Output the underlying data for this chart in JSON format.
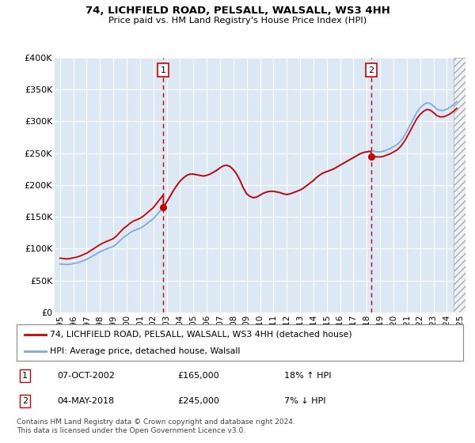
{
  "title": "74, LICHFIELD ROAD, PELSALL, WALSALL, WS3 4HH",
  "subtitle": "Price paid vs. HM Land Registry's House Price Index (HPI)",
  "background_color": "#dce9f5",
  "plot_bg_color": "#dce9f5",
  "hpi_line_color": "#7faadd",
  "property_line_color": "#cc0000",
  "vline_color": "#cc0000",
  "ylim": [
    0,
    400000
  ],
  "yticks": [
    0,
    50000,
    100000,
    150000,
    200000,
    250000,
    300000,
    350000,
    400000
  ],
  "ytick_labels": [
    "£0",
    "£50K",
    "£100K",
    "£150K",
    "£200K",
    "£250K",
    "£300K",
    "£350K",
    "£400K"
  ],
  "xtick_years": [
    1995,
    1996,
    1997,
    1998,
    1999,
    2000,
    2001,
    2002,
    2003,
    2004,
    2005,
    2006,
    2007,
    2008,
    2009,
    2010,
    2011,
    2012,
    2013,
    2014,
    2015,
    2016,
    2017,
    2018,
    2019,
    2020,
    2021,
    2022,
    2023,
    2024,
    2025
  ],
  "vline1_x": 2002.75,
  "vline2_x": 2018.33,
  "vline1_date": "07-OCT-2002",
  "vline1_price": "£165,000",
  "vline1_hpi": "18% ↑ HPI",
  "vline2_date": "04-MAY-2018",
  "vline2_price": "£245,000",
  "vline2_hpi": "7% ↓ HPI",
  "legend_property": "74, LICHFIELD ROAD, PELSALL, WALSALL, WS3 4HH (detached house)",
  "legend_hpi": "HPI: Average price, detached house, Walsall",
  "footer": "Contains HM Land Registry data © Crown copyright and database right 2024.\nThis data is licensed under the Open Government Licence v3.0.",
  "hpi_data_x": [
    1995.0,
    1995.25,
    1995.5,
    1995.75,
    1996.0,
    1996.25,
    1996.5,
    1996.75,
    1997.0,
    1997.25,
    1997.5,
    1997.75,
    1998.0,
    1998.25,
    1998.5,
    1998.75,
    1999.0,
    1999.25,
    1999.5,
    1999.75,
    2000.0,
    2000.25,
    2000.5,
    2000.75,
    2001.0,
    2001.25,
    2001.5,
    2001.75,
    2002.0,
    2002.25,
    2002.5,
    2002.75,
    2003.0,
    2003.25,
    2003.5,
    2003.75,
    2004.0,
    2004.25,
    2004.5,
    2004.75,
    2005.0,
    2005.25,
    2005.5,
    2005.75,
    2006.0,
    2006.25,
    2006.5,
    2006.75,
    2007.0,
    2007.25,
    2007.5,
    2007.75,
    2008.0,
    2008.25,
    2008.5,
    2008.75,
    2009.0,
    2009.25,
    2009.5,
    2009.75,
    2010.0,
    2010.25,
    2010.5,
    2010.75,
    2011.0,
    2011.25,
    2011.5,
    2011.75,
    2012.0,
    2012.25,
    2012.5,
    2012.75,
    2013.0,
    2013.25,
    2013.5,
    2013.75,
    2014.0,
    2014.25,
    2014.5,
    2014.75,
    2015.0,
    2015.25,
    2015.5,
    2015.75,
    2016.0,
    2016.25,
    2016.5,
    2016.75,
    2017.0,
    2017.25,
    2017.5,
    2017.75,
    2018.0,
    2018.25,
    2018.5,
    2018.75,
    2019.0,
    2019.25,
    2019.5,
    2019.75,
    2020.0,
    2020.25,
    2020.5,
    2020.75,
    2021.0,
    2021.25,
    2021.5,
    2021.75,
    2022.0,
    2022.25,
    2022.5,
    2022.75,
    2023.0,
    2023.25,
    2023.5,
    2023.75,
    2024.0,
    2024.25,
    2024.5,
    2024.75
  ],
  "hpi_data_y": [
    76000,
    75500,
    75000,
    75500,
    76500,
    77500,
    79000,
    81000,
    83000,
    86000,
    89000,
    92000,
    95000,
    97500,
    99500,
    101500,
    103500,
    107500,
    112500,
    117500,
    121000,
    125000,
    128000,
    130000,
    132000,
    135000,
    139000,
    143000,
    147000,
    153000,
    159000,
    165000,
    173000,
    182000,
    191000,
    199000,
    206000,
    211000,
    215000,
    217000,
    217000,
    216000,
    215000,
    214000,
    215000,
    217000,
    220000,
    223000,
    227000,
    230000,
    231000,
    229000,
    224000,
    217000,
    207000,
    195000,
    186000,
    182000,
    180000,
    181000,
    184000,
    187000,
    189000,
    190000,
    190000,
    189000,
    188000,
    186000,
    185000,
    186000,
    188000,
    190000,
    192000,
    195000,
    199000,
    203000,
    207000,
    212000,
    216000,
    219000,
    221000,
    223000,
    225000,
    228000,
    231000,
    234000,
    237000,
    240000,
    243000,
    246000,
    249000,
    251000,
    252000,
    253000,
    253000,
    252000,
    252000,
    253000,
    255000,
    257000,
    260000,
    263000,
    268000,
    275000,
    284000,
    294000,
    304000,
    314000,
    321000,
    326000,
    329000,
    328000,
    324000,
    319000,
    317000,
    317000,
    319000,
    322000,
    326000,
    331000
  ],
  "hatch_start_x": 2024.5
}
